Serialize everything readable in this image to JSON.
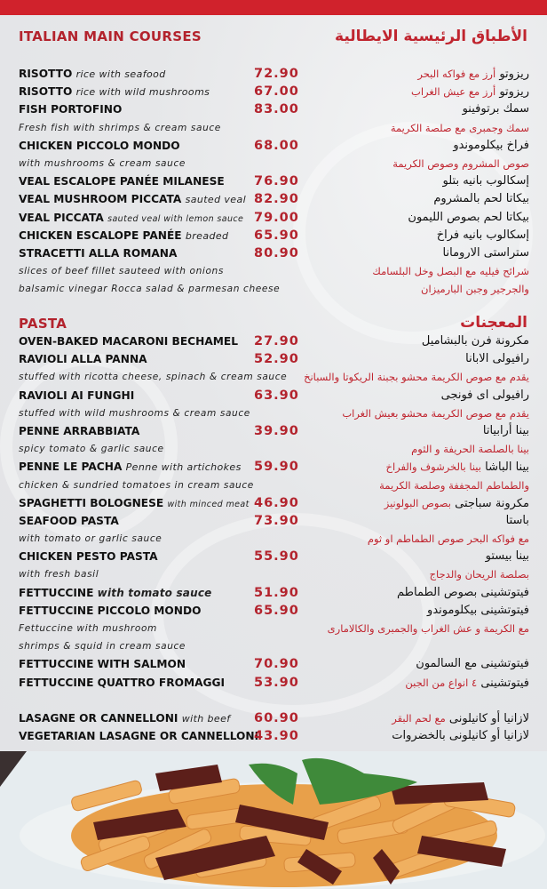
{
  "colors": {
    "accent": "#d0222c",
    "price": "#b3232d",
    "background": "#e8e9eb"
  },
  "sections": [
    {
      "title_en": "ITALIAN MAIN COURSES",
      "title_ar": "الأطباق الرئيسية الايطالية",
      "rows": [
        {
          "type": "item",
          "name": "RISOTTO",
          "note": "rice with seafood",
          "price": "72.90",
          "ar": "ريزوتو",
          "ar_note": "أرز مع فواكه البحر"
        },
        {
          "type": "item",
          "name": "RISOTTO",
          "note": "rice with wild mushrooms",
          "price": "67.00",
          "ar": "ريزوتو",
          "ar_note": "أرز مع عيش الغراب"
        },
        {
          "type": "item",
          "name": "FISH PORTOFINO",
          "price": "83.00",
          "ar": "سمك برتوفينو"
        },
        {
          "type": "desc",
          "text": "Fresh fish with shrimps & cream sauce",
          "ar": "سمك وجمبرى مع صلصة الكريمة"
        },
        {
          "type": "item",
          "name": "CHICKEN PICCOLO MONDO",
          "price": "68.00",
          "ar": "فراخ بيكلوموندو"
        },
        {
          "type": "desc",
          "text": "with mushrooms & cream sauce",
          "ar": "صوص المشروم وصوص الكريمة"
        },
        {
          "type": "item",
          "name": "VEAL ESCALOPE PANÉE MILANESE",
          "price": "76.90",
          "ar": "إسكالوب بانيه بتلو"
        },
        {
          "type": "item",
          "name": "VEAL MUSHROOM PICCATA",
          "note": "sauted veal",
          "price": "82.90",
          "ar": "بيكاتا لحم بالمشروم"
        },
        {
          "type": "item",
          "name": "VEAL PICCATA",
          "note": "sauted veal with lemon sauce",
          "note_style": "small",
          "price": "79.00",
          "ar": "بيكاتا لحم بصوص الليمون"
        },
        {
          "type": "item",
          "name": "CHICKEN ESCALOPE PANÉE",
          "note": "breaded",
          "price": "65.90",
          "ar": "إسكالوب بانيه فراخ"
        },
        {
          "type": "item",
          "name": "STRACETTI ALLA ROMANA",
          "price": "80.90",
          "ar": "ستراستى الارومانا"
        },
        {
          "type": "desc",
          "text": "slices of beef fillet sauteed with onions",
          "ar": "شرائح فيليه مع البصل وخل البلسامك"
        },
        {
          "type": "desc",
          "text": "balsamic vinegar Rocca salad & parmesan cheese",
          "ar": "والجرجير وجبن البارميزان"
        }
      ]
    },
    {
      "title_en": "PASTA",
      "title_ar": "المعجنات",
      "rows": [
        {
          "type": "item",
          "name": "OVEN-BAKED MACARONI BECHAMEL",
          "price": "27.90",
          "ar": "مكرونة فرن بالبشاميل"
        },
        {
          "type": "item",
          "name": "RAVIOLI ALLA PANNA",
          "price": "52.90",
          "ar": "رافيولى الابانا"
        },
        {
          "type": "desc",
          "text": "stuffed with ricotta cheese, spinach & cream sauce",
          "ar": "يقدم مع صوص الكريمة محشو بجبنة الريكوتا والسبانخ"
        },
        {
          "type": "item",
          "name": "RAVIOLI AI FUNGHI",
          "price": "63.90",
          "ar": "رافيولى اى فونجى"
        },
        {
          "type": "desc",
          "text": "stuffed with wild mushrooms & cream sauce",
          "ar": "يقدم مع صوص الكريمة محشو بعيش الغراب"
        },
        {
          "type": "item",
          "name": "PENNE ARRABBIATA",
          "price": "39.90",
          "ar": "بينا أرابياتا"
        },
        {
          "type": "desc",
          "text": "spicy tomato & garlic sauce",
          "ar": "بينا بالصلصة الحريفة و الثوم"
        },
        {
          "type": "item",
          "name": "PENNE LE PACHA",
          "note": "Penne with artichokes",
          "price": "59.90",
          "ar": "بينا الباشا",
          "ar_note": "بينا بالخرشوف والفراخ"
        },
        {
          "type": "desc",
          "text": "chicken & sundried tomatoes in cream sauce",
          "ar": "والطماطم المجففة وصلصة الكريمة"
        },
        {
          "type": "item",
          "name": "SPAGHETTI BOLOGNESE",
          "note": "with minced meat",
          "note_style": "small",
          "price": "46.90",
          "ar": "مكرونة سباجتى",
          "ar_note": "بصوص البولونيز"
        },
        {
          "type": "item",
          "name": "SEAFOOD PASTA",
          "price": "73.90",
          "ar": "باستا"
        },
        {
          "type": "desc",
          "text": "with tomato or garlic sauce",
          "ar": "مع فواكه البحر  صوص الطماطم او ثوم"
        },
        {
          "type": "item",
          "name": "CHICKEN PESTO PASTA",
          "price": "55.90",
          "ar": "بينا بيستو"
        },
        {
          "type": "desc",
          "text": "with fresh basil",
          "ar": "بصلصة الريحان والدجاج"
        },
        {
          "type": "item",
          "name": "FETTUCCINE",
          "note": "with tomato sauce",
          "note_style": "bold",
          "price": "51.90",
          "ar": "فيتوتشينى بصوص الطماطم"
        },
        {
          "type": "item",
          "name": "FETTUCCINE PICCOLO MONDO",
          "price": "65.90",
          "ar": "فيتوتشينى بيكلوموندو"
        },
        {
          "type": "desc",
          "text": "Fettuccine with mushroom",
          "ar": "مع الكريمة و عش الغراب والجمبرى والكالامارى"
        },
        {
          "type": "desc",
          "text": " shrimps & squid in cream sauce"
        },
        {
          "type": "item",
          "name": "FETTUCCINE WITH SALMON",
          "price": "70.90",
          "ar": "فيتوتشينى مع السالمون"
        },
        {
          "type": "item",
          "name": "FETTUCCINE QUATTRO FROMAGGI",
          "price": "53.90",
          "ar": "فيتوتشينى",
          "ar_note": "٤ انواع من الجبن"
        },
        {
          "type": "gap"
        },
        {
          "type": "item",
          "name": "LASAGNE OR CANNELLONI",
          "note": "with beef",
          "price": "60.90",
          "ar": "لازانيا  أو كانيلونى",
          "ar_note": "مع لحم البقر"
        },
        {
          "type": "item",
          "name": "VEGETARIAN LASAGNE OR CANNELLONI",
          "price": "43.90",
          "ar": "لازانيا أو كانيلونى بالخضروات"
        }
      ]
    }
  ]
}
